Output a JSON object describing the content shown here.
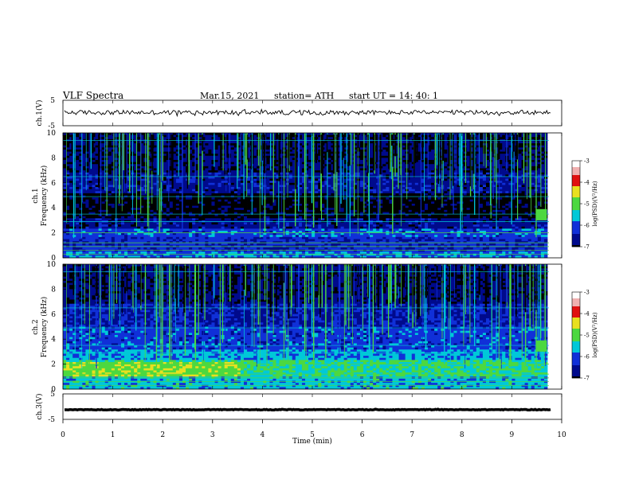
{
  "header": {
    "title": "VLF  Spectra",
    "date": "Mar.15, 2021",
    "station": "station= ATH",
    "start": "start  UT  =   14: 40: 1"
  },
  "chart_data": [
    {
      "type": "line",
      "panel": "ch1-waveform",
      "ylabel": "ch.1(V)",
      "ylim": [
        -5,
        5
      ],
      "yticks": [
        "5",
        "-5"
      ],
      "xlim": [
        0,
        10
      ],
      "series": [
        {
          "values_mean": 0.2,
          "values_range": [
            -1.5,
            1.5
          ]
        }
      ]
    },
    {
      "type": "heatmap",
      "panel": "ch1-spectrogram",
      "ylabel": "ch.1\nFrequency  (kHz)",
      "ylabel_lines": [
        "ch.1",
        "Frequency  (kHz)"
      ],
      "ylim": [
        0,
        10
      ],
      "yticks": [
        "0",
        "2",
        "4",
        "6",
        "8",
        "10"
      ],
      "xlim": [
        0,
        10
      ],
      "colorbar": {
        "label": "log(PSD)(V²/Hz)",
        "range": [
          -7,
          -3
        ],
        "ticks": [
          "-3",
          "-4",
          "-5",
          "-6",
          "-7"
        ]
      }
    },
    {
      "type": "heatmap",
      "panel": "ch2-spectrogram",
      "ylabel_lines": [
        "ch.2",
        "Frequency  (kHz)"
      ],
      "ylim": [
        0,
        10
      ],
      "yticks": [
        "0",
        "2",
        "4",
        "6",
        "8",
        "10"
      ],
      "xlim": [
        0,
        10
      ],
      "colorbar": {
        "label": "log(PSD)(V²/Hz)",
        "range": [
          -7,
          -3
        ],
        "ticks": [
          "-3",
          "-4",
          "-5",
          "-6",
          "-7"
        ]
      }
    },
    {
      "type": "line",
      "panel": "ch3-waveform",
      "ylabel": "ch.3(V)",
      "ylim": [
        -5,
        5
      ],
      "yticks": [
        "5",
        "-5"
      ],
      "xlim": [
        0,
        10
      ],
      "series": [
        {
          "values_mean": -1.2,
          "values_range": [
            -1.4,
            -1.0
          ]
        }
      ]
    }
  ],
  "xaxis": {
    "label": "Time  (min)",
    "ticks": [
      "0",
      "1",
      "2",
      "3",
      "4",
      "5",
      "6",
      "7",
      "8",
      "9",
      "10"
    ]
  },
  "colors": {
    "background_black": "#000000",
    "deep_blue": "#000a8c",
    "blue": "#1030d8",
    "cyan": "#00c8d8",
    "green": "#4cd840",
    "yellow": "#e8e020",
    "red": "#e01010"
  }
}
